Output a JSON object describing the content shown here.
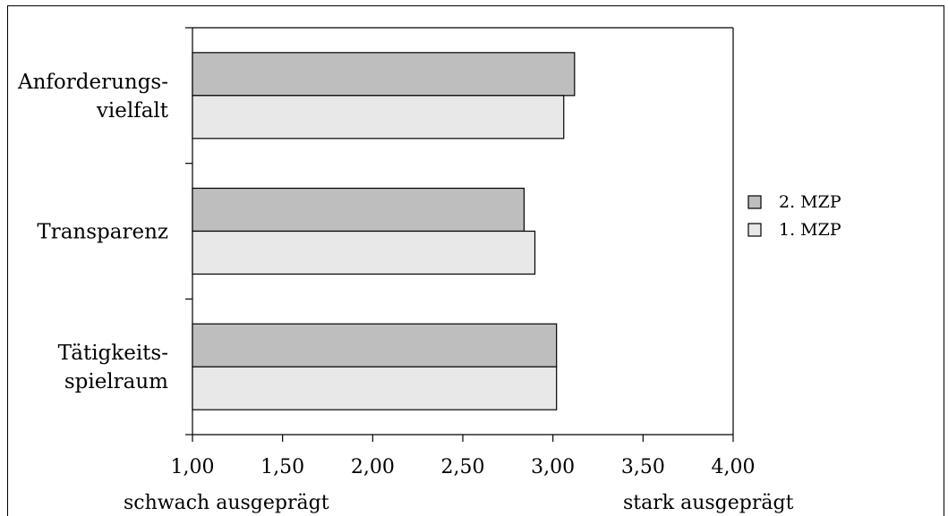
{
  "chart_data": {
    "type": "bar",
    "orientation": "horizontal",
    "categories": [
      [
        "Anforderungs-",
        "vielfalt"
      ],
      [
        "Transparenz"
      ],
      [
        "Tätigkeits-",
        "spielraum"
      ]
    ],
    "series": [
      {
        "name": "2. MZP",
        "values": [
          3.12,
          2.84,
          3.02
        ],
        "color": "#bebebe"
      },
      {
        "name": "1. MZP",
        "values": [
          3.06,
          2.9,
          3.02
        ],
        "color": "#e8e8e8"
      }
    ],
    "xlim": [
      1.0,
      4.0
    ],
    "xticks": [
      "1,00",
      "1,50",
      "2,00",
      "2,50",
      "3,00",
      "3,50",
      "4,00"
    ],
    "x_annotation_left": "schwach ausgeprägt",
    "x_annotation_right": "stark ausgeprägt",
    "legend_position": "right",
    "grid": false
  }
}
